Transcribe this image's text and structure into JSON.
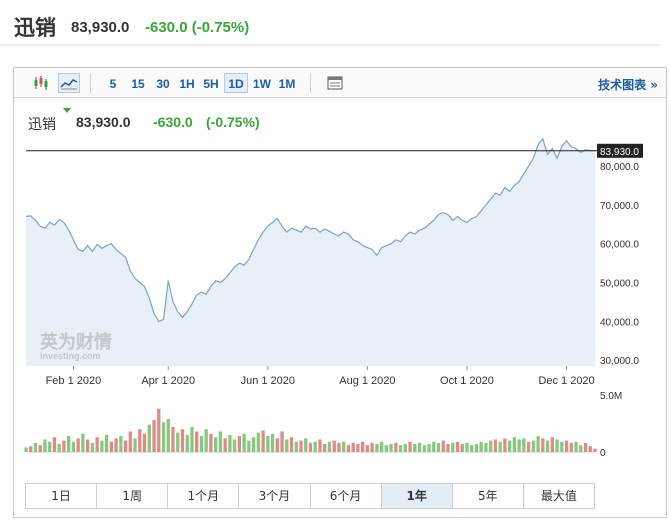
{
  "header": {
    "name": "迅销",
    "price": "83,930.0",
    "change": "-630.0 (-0.75%)"
  },
  "toolbar": {
    "chart_type_icons": [
      "candlestick-icon",
      "area-chart-icon"
    ],
    "intervals": [
      {
        "label": "5",
        "active": false
      },
      {
        "label": "15",
        "active": false
      },
      {
        "label": "30",
        "active": false
      },
      {
        "label": "1H",
        "active": false
      },
      {
        "label": "5H",
        "active": false
      },
      {
        "label": "1D",
        "active": true
      },
      {
        "label": "1W",
        "active": false
      },
      {
        "label": "1M",
        "active": false
      }
    ],
    "table_icon": "table-icon",
    "technical_link": "技术图表 »"
  },
  "quote": {
    "name": "迅销",
    "price": "83,930.0",
    "change": "-630.0",
    "percent": "(-0.75%)"
  },
  "colors": {
    "up": "#3aa537",
    "down": "#d9534f",
    "line": "#7ba3c9",
    "area": "#e8f0f7",
    "link": "#1a5fa5"
  },
  "watermark": {
    "cn": "英为财情",
    "en": "Investing.com"
  },
  "chart_data": {
    "type": "area",
    "x_tick_labels": [
      "Feb 1 2020",
      "Apr 1 2020",
      "Jun 1 2020",
      "Aug 1 2020",
      "Oct 1 2020",
      "Dec 1 2020"
    ],
    "y_tick_labels": [
      "80,000.0",
      "70,000.0",
      "60,000.0",
      "50,000.0",
      "40,000.0",
      "30,000.0"
    ],
    "ylim": [
      28500,
      88000
    ],
    "current_price_label": "83,930.0",
    "current_price": 83930,
    "price": [
      67000,
      67200,
      66000,
      64500,
      64000,
      65500,
      64800,
      66200,
      65500,
      63500,
      61000,
      58500,
      58000,
      59500,
      58000,
      59800,
      58800,
      59500,
      60000,
      58500,
      57500,
      56500,
      53000,
      51000,
      50000,
      49000,
      46000,
      42000,
      40000,
      40500,
      50500,
      45000,
      42500,
      41000,
      42500,
      44500,
      46800,
      47500,
      47000,
      49000,
      50500,
      50000,
      51000,
      52500,
      54000,
      55000,
      54500,
      56000,
      58500,
      61000,
      63000,
      64500,
      65500,
      66500,
      64500,
      63000,
      64000,
      63500,
      63000,
      64500,
      63800,
      64000,
      63000,
      63800,
      63200,
      62500,
      62000,
      63000,
      62500,
      61000,
      60500,
      59500,
      59000,
      58500,
      57000,
      59000,
      59500,
      60000,
      61000,
      60500,
      62000,
      63000,
      62500,
      63500,
      64000,
      65000,
      66000,
      67500,
      68000,
      67500,
      66000,
      67000,
      66000,
      65500,
      66500,
      67000,
      68500,
      70000,
      71500,
      73000,
      72500,
      74500,
      73500,
      75000,
      76000,
      78000,
      80000,
      82000,
      85500,
      87000,
      83000,
      84500,
      82000,
      85000,
      86500,
      85000,
      84500,
      83500,
      84200,
      84000,
      83930
    ],
    "volume_axis_labels": [
      "5.0M",
      "0"
    ],
    "volume_max": 5000000,
    "volume": [
      0.4,
      0.5,
      0.8,
      0.6,
      1.1,
      0.9,
      1.3,
      0.7,
      1.0,
      1.4,
      0.9,
      1.2,
      1.6,
      1.1,
      0.8,
      1.3,
      1.0,
      1.5,
      0.9,
      1.2,
      1.4,
      1.0,
      1.8,
      1.2,
      2.0,
      1.6,
      2.4,
      2.8,
      3.8,
      2.6,
      2.9,
      2.2,
      1.7,
      2.0,
      1.5,
      2.2,
      1.8,
      1.4,
      2.0,
      1.6,
      1.3,
      1.8,
      1.2,
      1.5,
      1.1,
      1.4,
      1.6,
      1.0,
      1.3,
      1.7,
      1.9,
      1.4,
      1.6,
      1.2,
      1.8,
      1.1,
      1.3,
      0.9,
      1.0,
      1.2,
      0.8,
      0.9,
      1.1,
      0.7,
      0.9,
      1.0,
      0.8,
      0.9,
      0.6,
      0.8,
      0.7,
      0.9,
      0.6,
      0.8,
      0.7,
      0.9,
      0.6,
      0.7,
      0.8,
      0.6,
      0.7,
      0.9,
      0.7,
      0.8,
      0.6,
      0.7,
      0.9,
      0.8,
      1.0,
      0.7,
      0.8,
      0.9,
      0.7,
      0.8,
      0.6,
      0.7,
      0.9,
      0.8,
      1.0,
      1.1,
      0.9,
      1.2,
      1.0,
      1.3,
      1.1,
      1.2,
      0.9,
      1.0,
      1.4,
      1.2,
      1.0,
      1.3,
      1.1,
      0.9,
      1.0,
      0.8,
      0.9,
      0.6,
      0.8,
      0.5,
      0.3
    ],
    "volume_up": [
      1,
      0,
      1,
      0,
      1,
      1,
      0,
      1,
      0,
      1,
      1,
      0,
      1,
      0,
      1,
      0,
      1,
      1,
      0,
      0,
      1,
      0,
      0,
      1,
      0,
      0,
      1,
      0,
      0,
      1,
      1,
      0,
      1,
      0,
      1,
      1,
      0,
      1,
      1,
      0,
      1,
      1,
      0,
      1,
      1,
      0,
      1,
      1,
      1,
      1,
      0,
      1,
      1,
      0,
      0,
      1,
      0,
      1,
      0,
      1,
      0,
      1,
      0,
      0,
      1,
      0,
      0,
      1,
      0,
      0,
      0,
      0,
      0,
      0,
      1,
      1,
      1,
      1,
      0,
      1,
      1,
      0,
      1,
      1,
      1,
      1,
      1,
      1,
      0,
      0,
      1,
      0,
      0,
      1,
      1,
      1,
      1,
      1,
      1,
      0,
      1,
      0,
      1,
      1,
      1,
      1,
      0,
      1,
      1,
      0,
      1,
      0,
      1,
      1,
      0,
      0,
      1,
      1,
      0,
      0,
      0
    ]
  },
  "period_tabs": [
    {
      "label": "1日",
      "active": false
    },
    {
      "label": "1周",
      "active": false
    },
    {
      "label": "1个月",
      "active": false
    },
    {
      "label": "3个月",
      "active": false
    },
    {
      "label": "6个月",
      "active": false
    },
    {
      "label": "1年",
      "active": true
    },
    {
      "label": "5年",
      "active": false
    },
    {
      "label": "最大值",
      "active": false
    }
  ]
}
